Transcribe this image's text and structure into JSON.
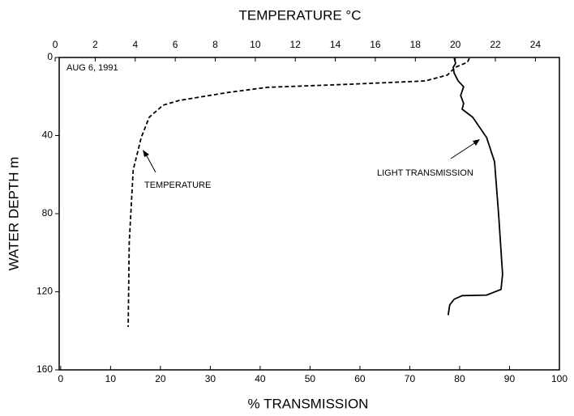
{
  "chart_data": {
    "type": "line",
    "x2label": "TEMPERATURE °C",
    "xlabel": "% TRANSMISSION",
    "ylabel": "WATER DEPTH m",
    "annotations": [
      "AUG 6, 1991",
      "TEMPERATURE",
      "LIGHT TRANSMISSION"
    ],
    "xlim": [
      -0.3,
      100
    ],
    "xticks": [
      0,
      10,
      20,
      30,
      40,
      50,
      60,
      70,
      80,
      90,
      100
    ],
    "x2lim": [
      0.2,
      25.2
    ],
    "x2ticks": [
      0,
      2,
      4,
      6,
      8,
      10,
      12,
      14,
      16,
      18,
      20,
      22,
      24
    ],
    "ylim": [
      0,
      160
    ],
    "yticks": [
      0,
      40,
      80,
      120,
      160
    ],
    "y_reversed": true,
    "series": [
      {
        "name": "TEMPERATURE",
        "color": "#000000",
        "style": "dashed",
        "axis": "x2",
        "x": [
          20.7,
          20.6,
          20.0,
          19.6,
          18.5,
          14.7,
          10.6,
          8.6,
          6.2,
          5.4,
          4.7,
          4.3,
          3.9,
          3.7,
          3.65
        ],
        "values": [
          0.4,
          2.5,
          5,
          9,
          12,
          13.7,
          15.3,
          18,
          22,
          24.4,
          30.6,
          41,
          57.6,
          94.8,
          138
        ]
      },
      {
        "name": "LIGHT TRANSMISSION",
        "color": "#000000",
        "style": "solid",
        "x": [
          78.9,
          79.2,
          78.7,
          78.9,
          79.7,
          80.8,
          80.2,
          80.8,
          80.5,
          82.6,
          85.4,
          87,
          87.8,
          88.6,
          88.3,
          85.4,
          80.5,
          78.9,
          78,
          77.7
        ],
        "values": [
          0.4,
          3,
          5,
          8,
          12,
          15,
          19.5,
          23.6,
          26.5,
          30.6,
          41,
          53.4,
          80.3,
          111,
          118.8,
          121.7,
          122,
          123.8,
          126.7,
          132
        ]
      }
    ]
  }
}
